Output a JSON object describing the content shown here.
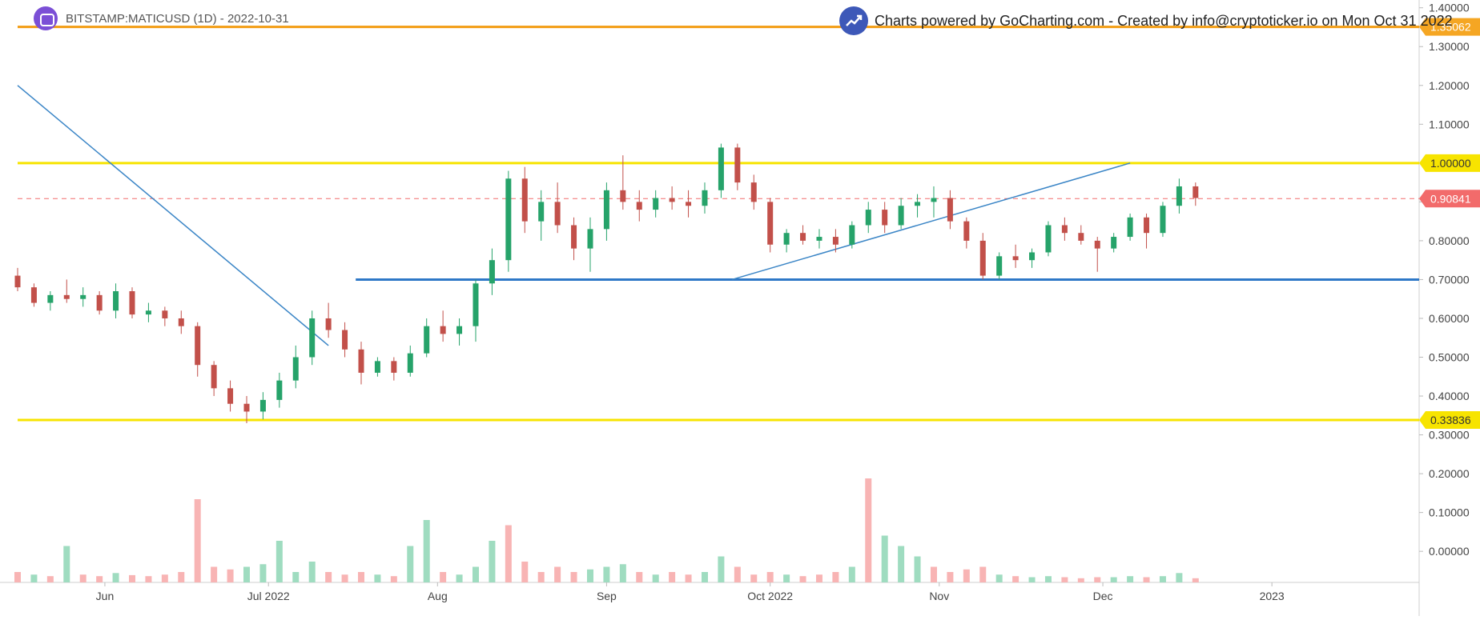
{
  "header": {
    "symbol_title": "BITSTAMP:MATICUSD (1D) - 2022-10-31",
    "credit": "Charts powered by GoCharting.com - Created by info@cryptoticker.io on Mon Oct 31 2022"
  },
  "colors": {
    "up": "#26a36a",
    "down": "#c2504a",
    "vol_up": "#9fdcc0",
    "vol_down": "#f8b4b4",
    "yellow": "#f7e400",
    "orange": "#f39c12",
    "blue": "#2e78c7",
    "trend": "#3a85c6",
    "price_line": "#f26b6b"
  },
  "chart_data": {
    "type": "candlestick",
    "title": "BITSTAMP:MATICUSD (1D) - 2022-10-31",
    "x_tick_labels": [
      "Jun",
      "Jul 2022",
      "Aug",
      "Sep",
      "Oct 2022",
      "Nov",
      "Dec",
      "2023"
    ],
    "x_tick_dates": [
      "2022-06-01",
      "2022-07-01",
      "2022-08-01",
      "2022-09-01",
      "2022-10-01",
      "2022-11-01",
      "2022-12-01",
      "2023-01-01"
    ],
    "x_range": [
      "2022-05-16",
      "2023-01-28"
    ],
    "y_tick_labels": [
      "0.00000",
      "0.10000",
      "0.20000",
      "0.30000",
      "0.40000",
      "0.50000",
      "0.60000",
      "0.70000",
      "0.80000",
      "0.90000",
      "1.00000",
      "1.10000",
      "1.20000",
      "1.30000",
      "1.40000"
    ],
    "y_ticks": [
      0.0,
      0.1,
      0.2,
      0.3,
      0.4,
      0.5,
      0.6,
      0.7,
      0.8,
      0.9,
      1.0,
      1.1,
      1.2,
      1.3,
      1.4
    ],
    "y_range": [
      -0.08,
      1.42
    ],
    "grid": false,
    "candles": [
      [
        "2022-05-16",
        0.71,
        0.73,
        0.67,
        0.68
      ],
      [
        "2022-05-19",
        0.68,
        0.69,
        0.63,
        0.64
      ],
      [
        "2022-05-22",
        0.64,
        0.67,
        0.62,
        0.66
      ],
      [
        "2022-05-25",
        0.66,
        0.7,
        0.64,
        0.65
      ],
      [
        "2022-05-28",
        0.65,
        0.68,
        0.63,
        0.66
      ],
      [
        "2022-05-31",
        0.66,
        0.67,
        0.61,
        0.62
      ],
      [
        "2022-06-03",
        0.62,
        0.69,
        0.6,
        0.67
      ],
      [
        "2022-06-06",
        0.67,
        0.68,
        0.6,
        0.61
      ],
      [
        "2022-06-09",
        0.61,
        0.64,
        0.59,
        0.62
      ],
      [
        "2022-06-12",
        0.62,
        0.63,
        0.58,
        0.6
      ],
      [
        "2022-06-15",
        0.6,
        0.62,
        0.56,
        0.58
      ],
      [
        "2022-06-18",
        0.58,
        0.59,
        0.45,
        0.48
      ],
      [
        "2022-06-21",
        0.48,
        0.49,
        0.4,
        0.42
      ],
      [
        "2022-06-24",
        0.42,
        0.44,
        0.36,
        0.38
      ],
      [
        "2022-06-27",
        0.38,
        0.4,
        0.33,
        0.36
      ],
      [
        "2022-06-30",
        0.36,
        0.41,
        0.34,
        0.39
      ],
      [
        "2022-07-03",
        0.39,
        0.46,
        0.37,
        0.44
      ],
      [
        "2022-07-06",
        0.44,
        0.53,
        0.42,
        0.5
      ],
      [
        "2022-07-09",
        0.5,
        0.62,
        0.48,
        0.6
      ],
      [
        "2022-07-12",
        0.6,
        0.64,
        0.55,
        0.57
      ],
      [
        "2022-07-15",
        0.57,
        0.59,
        0.5,
        0.52
      ],
      [
        "2022-07-18",
        0.52,
        0.54,
        0.43,
        0.46
      ],
      [
        "2022-07-21",
        0.46,
        0.5,
        0.45,
        0.49
      ],
      [
        "2022-07-24",
        0.49,
        0.5,
        0.44,
        0.46
      ],
      [
        "2022-07-27",
        0.46,
        0.53,
        0.45,
        0.51
      ],
      [
        "2022-07-30",
        0.51,
        0.6,
        0.5,
        0.58
      ],
      [
        "2022-08-02",
        0.58,
        0.62,
        0.54,
        0.56
      ],
      [
        "2022-08-05",
        0.56,
        0.6,
        0.53,
        0.58
      ],
      [
        "2022-08-08",
        0.58,
        0.7,
        0.54,
        0.69
      ],
      [
        "2022-08-11",
        0.69,
        0.78,
        0.66,
        0.75
      ],
      [
        "2022-08-14",
        0.75,
        0.98,
        0.72,
        0.96
      ],
      [
        "2022-08-17",
        0.96,
        0.99,
        0.82,
        0.85
      ],
      [
        "2022-08-20",
        0.85,
        0.93,
        0.8,
        0.9
      ],
      [
        "2022-08-23",
        0.9,
        0.95,
        0.82,
        0.84
      ],
      [
        "2022-08-26",
        0.84,
        0.86,
        0.75,
        0.78
      ],
      [
        "2022-08-29",
        0.78,
        0.86,
        0.72,
        0.83
      ],
      [
        "2022-09-01",
        0.83,
        0.95,
        0.8,
        0.93
      ],
      [
        "2022-09-04",
        0.93,
        1.02,
        0.88,
        0.9
      ],
      [
        "2022-09-07",
        0.9,
        0.93,
        0.85,
        0.88
      ],
      [
        "2022-09-10",
        0.88,
        0.93,
        0.86,
        0.91
      ],
      [
        "2022-09-13",
        0.91,
        0.94,
        0.88,
        0.9
      ],
      [
        "2022-09-16",
        0.9,
        0.93,
        0.86,
        0.89
      ],
      [
        "2022-09-19",
        0.89,
        0.95,
        0.87,
        0.93
      ],
      [
        "2022-09-22",
        0.93,
        1.05,
        0.91,
        1.04
      ],
      [
        "2022-09-25",
        1.04,
        1.05,
        0.93,
        0.95
      ],
      [
        "2022-09-28",
        0.95,
        0.97,
        0.88,
        0.9
      ],
      [
        "2022-10-01",
        0.9,
        0.91,
        0.77,
        0.79
      ],
      [
        "2022-10-04",
        0.79,
        0.83,
        0.77,
        0.82
      ],
      [
        "2022-10-07",
        0.82,
        0.84,
        0.79,
        0.8
      ],
      [
        "2022-10-10",
        0.8,
        0.83,
        0.78,
        0.81
      ],
      [
        "2022-10-13",
        0.81,
        0.83,
        0.77,
        0.79
      ],
      [
        "2022-10-16",
        0.79,
        0.85,
        0.78,
        0.84
      ],
      [
        "2022-10-19",
        0.84,
        0.9,
        0.82,
        0.88
      ],
      [
        "2022-10-22",
        0.88,
        0.9,
        0.82,
        0.84
      ],
      [
        "2022-10-25",
        0.84,
        0.91,
        0.83,
        0.89
      ],
      [
        "2022-10-28",
        0.89,
        0.92,
        0.86,
        0.9
      ],
      [
        "2022-10-31",
        0.9,
        0.94,
        0.86,
        0.91
      ],
      [
        "2022-11-03",
        0.91,
        0.93,
        0.83,
        0.85
      ],
      [
        "2022-11-06",
        0.85,
        0.86,
        0.78,
        0.8
      ],
      [
        "2022-11-09",
        0.8,
        0.82,
        0.7,
        0.71
      ],
      [
        "2022-11-12",
        0.71,
        0.77,
        0.7,
        0.76
      ],
      [
        "2022-11-15",
        0.76,
        0.79,
        0.73,
        0.75
      ],
      [
        "2022-11-18",
        0.75,
        0.78,
        0.73,
        0.77
      ],
      [
        "2022-11-21",
        0.77,
        0.85,
        0.76,
        0.84
      ],
      [
        "2022-11-24",
        0.84,
        0.86,
        0.8,
        0.82
      ],
      [
        "2022-11-27",
        0.82,
        0.84,
        0.79,
        0.8
      ],
      [
        "2022-11-30",
        0.8,
        0.81,
        0.72,
        0.78
      ],
      [
        "2022-12-03",
        0.78,
        0.82,
        0.77,
        0.81
      ],
      [
        "2022-12-06",
        0.81,
        0.87,
        0.8,
        0.86
      ],
      [
        "2022-12-09",
        0.86,
        0.87,
        0.78,
        0.82
      ],
      [
        "2022-12-12",
        0.82,
        0.9,
        0.81,
        0.89
      ],
      [
        "2022-12-15",
        0.89,
        0.96,
        0.87,
        0.94
      ],
      [
        "2022-12-18",
        0.94,
        0.95,
        0.89,
        0.91
      ]
    ],
    "volume": [
      [
        "2022-05-16",
        0.02,
        "down"
      ],
      [
        "2022-05-19",
        0.015,
        "up"
      ],
      [
        "2022-05-22",
        0.012,
        "down"
      ],
      [
        "2022-05-25",
        0.07,
        "up"
      ],
      [
        "2022-05-28",
        0.015,
        "down"
      ],
      [
        "2022-05-31",
        0.012,
        "down"
      ],
      [
        "2022-06-03",
        0.018,
        "up"
      ],
      [
        "2022-06-06",
        0.014,
        "down"
      ],
      [
        "2022-06-09",
        0.012,
        "down"
      ],
      [
        "2022-06-12",
        0.015,
        "down"
      ],
      [
        "2022-06-15",
        0.02,
        "down"
      ],
      [
        "2022-06-18",
        0.16,
        "down"
      ],
      [
        "2022-06-21",
        0.03,
        "down"
      ],
      [
        "2022-06-24",
        0.025,
        "down"
      ],
      [
        "2022-06-27",
        0.03,
        "up"
      ],
      [
        "2022-06-30",
        0.035,
        "up"
      ],
      [
        "2022-07-03",
        0.08,
        "up"
      ],
      [
        "2022-07-06",
        0.02,
        "up"
      ],
      [
        "2022-07-09",
        0.04,
        "up"
      ],
      [
        "2022-07-12",
        0.02,
        "down"
      ],
      [
        "2022-07-15",
        0.015,
        "down"
      ],
      [
        "2022-07-18",
        0.02,
        "down"
      ],
      [
        "2022-07-21",
        0.015,
        "up"
      ],
      [
        "2022-07-24",
        0.012,
        "down"
      ],
      [
        "2022-07-27",
        0.07,
        "up"
      ],
      [
        "2022-07-30",
        0.12,
        "up"
      ],
      [
        "2022-08-02",
        0.02,
        "down"
      ],
      [
        "2022-08-05",
        0.015,
        "up"
      ],
      [
        "2022-08-08",
        0.03,
        "up"
      ],
      [
        "2022-08-11",
        0.08,
        "up"
      ],
      [
        "2022-08-14",
        0.11,
        "down"
      ],
      [
        "2022-08-17",
        0.04,
        "down"
      ],
      [
        "2022-08-20",
        0.02,
        "down"
      ],
      [
        "2022-08-23",
        0.03,
        "down"
      ],
      [
        "2022-08-26",
        0.02,
        "down"
      ],
      [
        "2022-08-29",
        0.025,
        "up"
      ],
      [
        "2022-09-01",
        0.03,
        "up"
      ],
      [
        "2022-09-04",
        0.035,
        "up"
      ],
      [
        "2022-09-07",
        0.02,
        "down"
      ],
      [
        "2022-09-10",
        0.015,
        "up"
      ],
      [
        "2022-09-13",
        0.02,
        "down"
      ],
      [
        "2022-09-16",
        0.015,
        "down"
      ],
      [
        "2022-09-19",
        0.02,
        "up"
      ],
      [
        "2022-09-22",
        0.05,
        "up"
      ],
      [
        "2022-09-25",
        0.03,
        "down"
      ],
      [
        "2022-09-28",
        0.015,
        "down"
      ],
      [
        "2022-10-01",
        0.02,
        "down"
      ],
      [
        "2022-10-04",
        0.015,
        "up"
      ],
      [
        "2022-10-07",
        0.012,
        "down"
      ],
      [
        "2022-10-10",
        0.015,
        "down"
      ],
      [
        "2022-10-13",
        0.02,
        "down"
      ],
      [
        "2022-10-16",
        0.03,
        "up"
      ],
      [
        "2022-10-19",
        0.2,
        "down"
      ],
      [
        "2022-10-22",
        0.09,
        "up"
      ],
      [
        "2022-10-25",
        0.07,
        "up"
      ],
      [
        "2022-10-28",
        0.05,
        "up"
      ],
      [
        "2022-10-31",
        0.03,
        "down"
      ],
      [
        "2022-11-03",
        0.02,
        "down"
      ],
      [
        "2022-11-06",
        0.025,
        "down"
      ],
      [
        "2022-11-09",
        0.03,
        "down"
      ],
      [
        "2022-11-12",
        0.015,
        "up"
      ],
      [
        "2022-11-15",
        0.012,
        "down"
      ],
      [
        "2022-11-18",
        0.01,
        "up"
      ],
      [
        "2022-11-21",
        0.012,
        "up"
      ],
      [
        "2022-11-24",
        0.01,
        "down"
      ],
      [
        "2022-11-27",
        0.008,
        "down"
      ],
      [
        "2022-11-30",
        0.01,
        "down"
      ],
      [
        "2022-12-03",
        0.01,
        "up"
      ],
      [
        "2022-12-06",
        0.012,
        "up"
      ],
      [
        "2022-12-09",
        0.01,
        "down"
      ],
      [
        "2022-12-12",
        0.012,
        "up"
      ],
      [
        "2022-12-15",
        0.018,
        "up"
      ],
      [
        "2022-12-18",
        0.008,
        "down"
      ]
    ],
    "vol_axis_max": 0.2,
    "horizontal_levels": [
      {
        "value": 1.35062,
        "label": "1.35062",
        "color": "#f39c12",
        "label_bg": "#f5a623",
        "style": "solid",
        "width": 3,
        "from": "2022-05-16"
      },
      {
        "value": 1.0,
        "label": "1.00000",
        "color": "#f7e400",
        "label_bg": "#f7e400",
        "style": "solid",
        "width": 3,
        "from": "2022-05-16"
      },
      {
        "value": 0.90841,
        "label": "0.90841",
        "color": "#f26b6b",
        "label_bg": "#f26b6b",
        "style": "dashed",
        "width": 1,
        "from": "2022-05-16"
      },
      {
        "value": 0.7,
        "label": "",
        "color": "#2e78c7",
        "label_bg": "",
        "style": "solid",
        "width": 3,
        "from": "2022-07-17"
      },
      {
        "value": 0.33836,
        "label": "0.33836",
        "color": "#f7e400",
        "label_bg": "#f7e400",
        "style": "solid",
        "width": 3,
        "from": "2022-05-16"
      }
    ],
    "trendlines": [
      {
        "from": [
          "2022-05-16",
          1.2
        ],
        "to": [
          "2022-07-12",
          0.53
        ],
        "color": "#3a85c6"
      },
      {
        "from": [
          "2022-09-24",
          0.7
        ],
        "to": [
          "2022-12-06",
          1.0
        ],
        "color": "#3a85c6"
      }
    ]
  }
}
